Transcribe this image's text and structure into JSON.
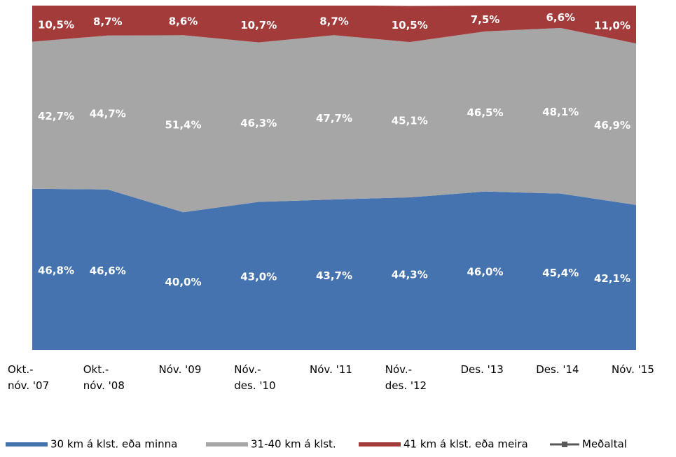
{
  "chart_data": {
    "type": "stacked-area",
    "categories": [
      "Okt.-\nnóv. '07",
      "Okt.-\nnóv. '08",
      "Nóv. '09",
      "Nóv.-\ndes. '10",
      "Nóv. '11",
      "Nóv.-\ndes. '12",
      "Des. '13",
      "Des. '14",
      "Nóv. '15"
    ],
    "series": [
      {
        "name": "30 km á klst. eða minna",
        "color": "#4573b0",
        "values": [
          46.8,
          46.6,
          40.0,
          43.0,
          43.7,
          44.3,
          46.0,
          45.4,
          42.1
        ],
        "value_labels": [
          "46,8%",
          "46,6%",
          "40,0%",
          "43,0%",
          "43,7%",
          "44,3%",
          "46,0%",
          "45,4%",
          "42,1%"
        ]
      },
      {
        "name": "31-40 km á klst.",
        "color": "#a6a6a6",
        "values": [
          42.7,
          44.7,
          51.4,
          46.3,
          47.7,
          45.1,
          46.5,
          48.1,
          46.9
        ],
        "value_labels": [
          "42,7%",
          "44,7%",
          "51,4%",
          "46,3%",
          "47,7%",
          "45,1%",
          "46,5%",
          "48,1%",
          "46,9%"
        ]
      },
      {
        "name": "41 km á klst. eða meira",
        "color": "#a33b3b",
        "values": [
          10.5,
          8.7,
          8.6,
          10.7,
          8.7,
          10.5,
          7.5,
          6.6,
          11.0
        ],
        "value_labels": [
          "10,5%",
          "8,7%",
          "8,6%",
          "10,7%",
          "8,7%",
          "10,5%",
          "7,5%",
          "6,6%",
          "11,0%"
        ]
      }
    ],
    "extra_legend": {
      "name": "Meðaltal",
      "color": "#595959"
    },
    "ylim": [
      0,
      100
    ],
    "legend": "bottom"
  }
}
